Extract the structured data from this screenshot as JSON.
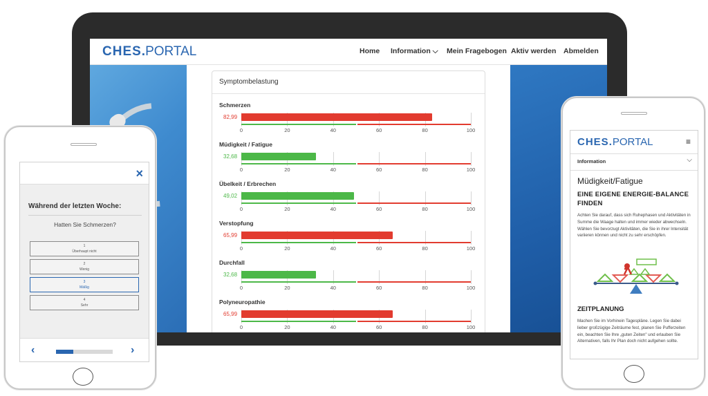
{
  "laptop": {
    "logo_main": "CHES",
    "logo_sep": ".",
    "logo_sub": "PORTAL",
    "nav": [
      "Home",
      "Information ⌵",
      "Mein Fragebogen",
      "Aktiv werden",
      "Abmelden"
    ],
    "card_title": "Symptombelastung"
  },
  "chart_data": {
    "type": "bar",
    "title": "Symptombelastung",
    "orientation": "horizontal",
    "xlim": [
      0,
      100
    ],
    "ticks": [
      "0",
      "20",
      "40",
      "60",
      "80",
      "100"
    ],
    "reference_bands": [
      {
        "from": 0,
        "to": 50,
        "color": "#4cb848"
      },
      {
        "from": 50,
        "to": 100,
        "color": "#e23b2f"
      }
    ],
    "categories": [
      "Schmerzen",
      "Müdigkeit / Fatigue",
      "Übelkeit / Erbrechen",
      "Verstopfung",
      "Durchfall",
      "Polyneuropathie"
    ],
    "values": [
      82.99,
      32.68,
      49.02,
      65.99,
      32.68,
      65.99
    ],
    "value_labels": [
      "82,99",
      "32,68",
      "49,02",
      "65,99",
      "32,68",
      "65,99"
    ],
    "colors": [
      "#e23b2f",
      "#4cb848",
      "#4cb848",
      "#e23b2f",
      "#4cb848",
      "#e23b2f"
    ]
  },
  "phone_left": {
    "question": "Während der letzten Woche:",
    "subquestion": "Hatten Sie Schmerzen?",
    "options": [
      {
        "num": "1",
        "text": "Überhaupt nicht"
      },
      {
        "num": "2",
        "text": "Wenig"
      },
      {
        "num": "3",
        "text": "Mäßig"
      },
      {
        "num": "4",
        "text": "Sehr"
      }
    ],
    "selected_index": 2,
    "progress_fraction": 0.3,
    "close_icon": "×",
    "prev_icon": "‹",
    "next_icon": "›"
  },
  "phone_right": {
    "logo_main": "CHES",
    "logo_sep": ".",
    "logo_sub": "PORTAL",
    "menu_icon": "≡",
    "info_label": "Information",
    "info_chevron": "⌵",
    "heading": "Müdigkeit/Fatigue",
    "subheading": "EINE EIGENE ENERGIE-BALANCE FINDEN",
    "paragraph1": "Achten Sie darauf, dass sich Ruhephasen und Aktivitäten in Summe die Waage halten und immer wieder abwechseln. Wählen Sie bevorzugt Aktivitäten, die Sie in ihrer Intensität variieren können und nicht zu sehr erschöpfen.",
    "section2": "ZEITPLANUNG",
    "paragraph2": "Machen Sie im Vorhinein Tagespläne. Legen Sie dabei lieber großzügige Zeiträume fest, planen Sie Pufferzeiten ein, beachten Sie Ihre „guten Zeiten\" und erlauben Sie Alternativen, falls Ihr Plan doch nicht aufgehen sollte."
  },
  "colors": {
    "brand": "#2a66b0",
    "good": "#4cb848",
    "bad": "#e23b2f"
  }
}
